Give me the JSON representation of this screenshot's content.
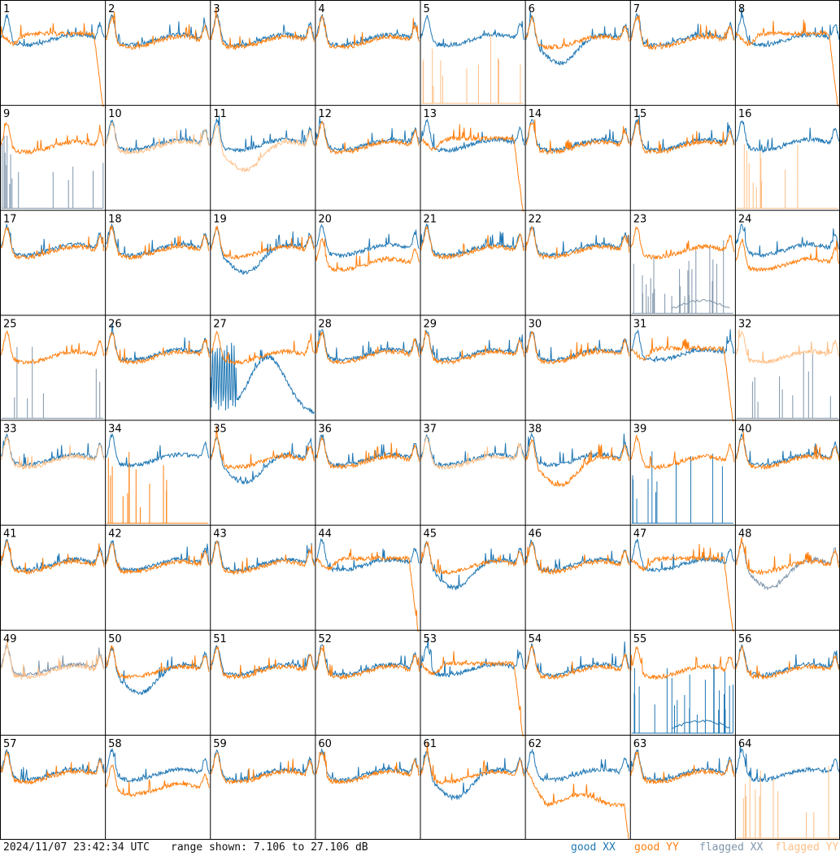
{
  "footer": {
    "timestamp": "2024/11/07 23:42:34 UTC",
    "range_text": "range shown: 7.106 to 27.106 dB"
  },
  "legend": {
    "good_xx": "good XX",
    "good_yy": "good YY",
    "flagged_xx": "flagged XX",
    "flagged_yy": "flagged YY"
  },
  "colors": {
    "good_xx": "#1f77b4",
    "good_yy": "#ff7f0e",
    "flagged_xx": "#7f95ab",
    "flagged_yy": "#ffbf86",
    "grid": "#000000"
  },
  "chart_data": {
    "type": "line",
    "grid_layout": "8x8",
    "panel_labels": [
      "1",
      "2",
      "3",
      "4",
      "5",
      "6",
      "7",
      "8",
      "9",
      "10",
      "11",
      "12",
      "13",
      "14",
      "15",
      "16",
      "17",
      "18",
      "19",
      "20",
      "21",
      "22",
      "23",
      "24",
      "25",
      "26",
      "27",
      "28",
      "29",
      "30",
      "31",
      "32",
      "33",
      "34",
      "35",
      "36",
      "37",
      "38",
      "39",
      "40",
      "41",
      "42",
      "43",
      "44",
      "45",
      "46",
      "47",
      "48",
      "49",
      "50",
      "51",
      "52",
      "53",
      "54",
      "55",
      "56",
      "57",
      "58",
      "59",
      "60",
      "61",
      "62",
      "63",
      "64"
    ],
    "y_range_db": [
      7.106,
      27.106
    ],
    "series_names": [
      "good XX",
      "good YY",
      "flagged XX",
      "flagged YY"
    ],
    "panels": [
      {
        "xx": "good",
        "yy": "good",
        "xx_shape": "normal",
        "yy_shape": "flat_drop"
      },
      {
        "xx": "good",
        "yy": "good",
        "xx_shape": "normal",
        "yy_shape": "normal"
      },
      {
        "xx": "good",
        "yy": "good",
        "xx_shape": "normal",
        "yy_shape": "normal"
      },
      {
        "xx": "good",
        "yy": "good",
        "xx_shape": "normal",
        "yy_shape": "normal"
      },
      {
        "xx": "good",
        "yy": "flagged",
        "xx_shape": "normal",
        "yy_shape": "spikes"
      },
      {
        "xx": "good",
        "yy": "good",
        "xx_shape": "dip",
        "yy_shape": "normal"
      },
      {
        "xx": "good",
        "yy": "good",
        "xx_shape": "normal",
        "yy_shape": "normal"
      },
      {
        "xx": "good",
        "yy": "good",
        "xx_shape": "normal",
        "yy_shape": "flat_drop"
      },
      {
        "xx": "flagged",
        "yy": "good",
        "xx_shape": "spikes",
        "yy_shape": "normal"
      },
      {
        "xx": "good",
        "yy": "flagged",
        "xx_shape": "normal",
        "yy_shape": "normal"
      },
      {
        "xx": "good",
        "yy": "flagged",
        "xx_shape": "normal",
        "yy_shape": "dip"
      },
      {
        "xx": "good",
        "yy": "good",
        "xx_shape": "normal",
        "yy_shape": "normal"
      },
      {
        "xx": "good",
        "yy": "good",
        "xx_shape": "normal",
        "yy_shape": "flat_drop"
      },
      {
        "xx": "good",
        "yy": "good",
        "xx_shape": "normal",
        "yy_shape": "normal"
      },
      {
        "xx": "good",
        "yy": "good",
        "xx_shape": "normal",
        "yy_shape": "normal"
      },
      {
        "xx": "good",
        "yy": "flagged",
        "xx_shape": "normal",
        "yy_shape": "spikes"
      },
      {
        "xx": "good",
        "yy": "good",
        "xx_shape": "normal",
        "yy_shape": "normal"
      },
      {
        "xx": "good",
        "yy": "good",
        "xx_shape": "normal",
        "yy_shape": "normal"
      },
      {
        "xx": "good",
        "yy": "good",
        "xx_shape": "dip",
        "yy_shape": "normal"
      },
      {
        "xx": "good",
        "yy": "good",
        "xx_shape": "normal",
        "yy_shape": "low"
      },
      {
        "xx": "good",
        "yy": "good",
        "xx_shape": "normal",
        "yy_shape": "normal"
      },
      {
        "xx": "good",
        "yy": "good",
        "xx_shape": "normal",
        "yy_shape": "normal"
      },
      {
        "xx": "flagged",
        "yy": "good",
        "xx_shape": "spikes_tail",
        "yy_shape": "normal"
      },
      {
        "xx": "good",
        "yy": "good",
        "xx_shape": "normal",
        "yy_shape": "low"
      },
      {
        "xx": "flagged",
        "yy": "good",
        "xx_shape": "spikes",
        "yy_shape": "normal"
      },
      {
        "xx": "good",
        "yy": "good",
        "xx_shape": "normal",
        "yy_shape": "normal"
      },
      {
        "xx": "good",
        "yy": "good",
        "xx_shape": "hump",
        "yy_shape": "normal"
      },
      {
        "xx": "good",
        "yy": "good",
        "xx_shape": "normal",
        "yy_shape": "normal"
      },
      {
        "xx": "good",
        "yy": "good",
        "xx_shape": "normal",
        "yy_shape": "normal"
      },
      {
        "xx": "good",
        "yy": "good",
        "xx_shape": "normal",
        "yy_shape": "normal"
      },
      {
        "xx": "good",
        "yy": "good",
        "xx_shape": "normal",
        "yy_shape": "flat_drop"
      },
      {
        "xx": "flagged",
        "yy": "flagged",
        "xx_shape": "spikes",
        "yy_shape": "normal"
      },
      {
        "xx": "good",
        "yy": "flagged",
        "xx_shape": "normal",
        "yy_shape": "normal"
      },
      {
        "xx": "good",
        "yy": "good",
        "xx_shape": "normal",
        "yy_shape": "spikes"
      },
      {
        "xx": "good",
        "yy": "good",
        "xx_shape": "dip",
        "yy_shape": "normal"
      },
      {
        "xx": "good",
        "yy": "good",
        "xx_shape": "normal",
        "yy_shape": "normal"
      },
      {
        "xx": "good",
        "yy": "flagged",
        "xx_shape": "normal",
        "yy_shape": "normal"
      },
      {
        "xx": "good",
        "yy": "good",
        "xx_shape": "normal",
        "yy_shape": "dip"
      },
      {
        "xx": "good",
        "yy": "good",
        "xx_shape": "spikes",
        "yy_shape": "normal"
      },
      {
        "xx": "good",
        "yy": "good",
        "xx_shape": "normal",
        "yy_shape": "normal"
      },
      {
        "xx": "good",
        "yy": "good",
        "xx_shape": "normal",
        "yy_shape": "normal"
      },
      {
        "xx": "good",
        "yy": "good",
        "xx_shape": "normal",
        "yy_shape": "normal"
      },
      {
        "xx": "good",
        "yy": "good",
        "xx_shape": "normal",
        "yy_shape": "normal"
      },
      {
        "xx": "good",
        "yy": "good",
        "xx_shape": "normal",
        "yy_shape": "flat_drop"
      },
      {
        "xx": "good",
        "yy": "good",
        "xx_shape": "dip",
        "yy_shape": "normal"
      },
      {
        "xx": "good",
        "yy": "good",
        "xx_shape": "normal",
        "yy_shape": "normal"
      },
      {
        "xx": "good",
        "yy": "good",
        "xx_shape": "normal",
        "yy_shape": "flat_drop"
      },
      {
        "xx": "flagged",
        "yy": "good",
        "xx_shape": "dip",
        "yy_shape": "normal"
      },
      {
        "xx": "flagged",
        "yy": "flagged",
        "xx_shape": "normal",
        "yy_shape": "normal"
      },
      {
        "xx": "good",
        "yy": "good",
        "xx_shape": "dip",
        "yy_shape": "normal"
      },
      {
        "xx": "good",
        "yy": "good",
        "xx_shape": "normal",
        "yy_shape": "normal"
      },
      {
        "xx": "good",
        "yy": "good",
        "xx_shape": "normal",
        "yy_shape": "normal"
      },
      {
        "xx": "good",
        "yy": "good",
        "xx_shape": "normal",
        "yy_shape": "flat_drop"
      },
      {
        "xx": "good",
        "yy": "good",
        "xx_shape": "normal",
        "yy_shape": "normal"
      },
      {
        "xx": "good",
        "yy": "good",
        "xx_shape": "spikes_tail",
        "yy_shape": "normal"
      },
      {
        "xx": "good",
        "yy": "good",
        "xx_shape": "normal",
        "yy_shape": "normal"
      },
      {
        "xx": "good",
        "yy": "good",
        "xx_shape": "normal",
        "yy_shape": "normal"
      },
      {
        "xx": "good",
        "yy": "good",
        "xx_shape": "normal",
        "yy_shape": "low"
      },
      {
        "xx": "good",
        "yy": "good",
        "xx_shape": "normal",
        "yy_shape": "normal"
      },
      {
        "xx": "good",
        "yy": "good",
        "xx_shape": "normal",
        "yy_shape": "normal"
      },
      {
        "xx": "good",
        "yy": "good",
        "xx_shape": "dip",
        "yy_shape": "normal"
      },
      {
        "xx": "good",
        "yy": "good",
        "xx_shape": "normal",
        "yy_shape": "very_low"
      },
      {
        "xx": "good",
        "yy": "good",
        "xx_shape": "normal",
        "yy_shape": "normal"
      },
      {
        "xx": "good",
        "yy": "flagged",
        "xx_shape": "normal",
        "yy_shape": "spikes"
      }
    ]
  }
}
